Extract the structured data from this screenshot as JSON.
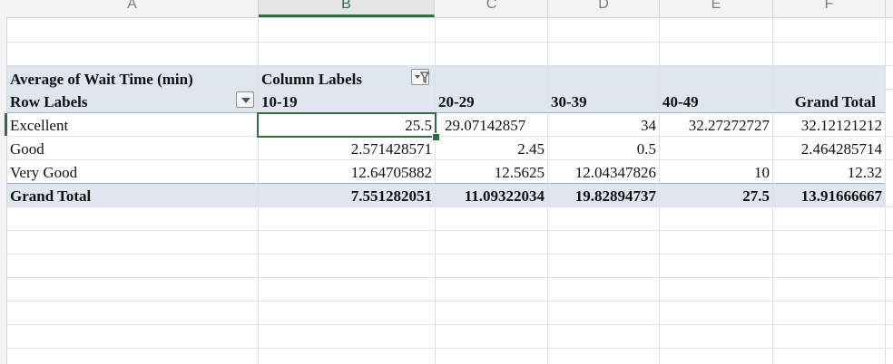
{
  "columns": [
    "A",
    "B",
    "C",
    "D",
    "E",
    "F"
  ],
  "pivot": {
    "value_field": "Average of Wait Time (min)",
    "column_labels_caption": "Column Labels",
    "row_labels_caption": "Row Labels",
    "column_headers": [
      "10-19",
      "20-29",
      "30-39",
      "40-49",
      "Grand Total"
    ],
    "rows": [
      {
        "label": "Excellent",
        "values": [
          "25.5",
          "29.07142857",
          "34",
          "32.27272727",
          "32.12121212"
        ]
      },
      {
        "label": "Good",
        "values": [
          "2.571428571",
          "2.45",
          "0.5",
          "",
          "2.464285714"
        ]
      },
      {
        "label": "Very Good",
        "values": [
          "12.64705882",
          "12.5625",
          "12.04347826",
          "10",
          "12.32"
        ]
      }
    ],
    "grand_total": {
      "label": "Grand Total",
      "values": [
        "7.551282051",
        "11.09322034",
        "19.82894737",
        "27.5",
        "13.91666667"
      ]
    }
  },
  "icons": {
    "column_filter": "filter-funnel-dropdown-icon",
    "row_filter": "dropdown-arrow-icon"
  },
  "colors": {
    "accent": "#2f6e3e",
    "pivot_band": "#dfe6ef",
    "pivot_line": "#9bb3cf"
  }
}
